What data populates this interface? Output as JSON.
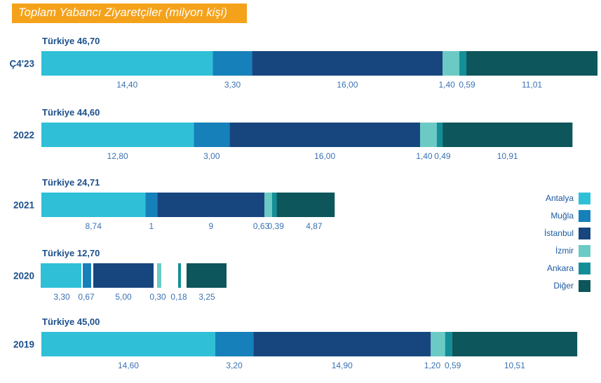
{
  "chart_data": {
    "type": "bar",
    "orientation": "horizontal",
    "stacked": true,
    "title": "Toplam Yabancı Ziyaretçiler (milyon kişi)",
    "xlabel": "",
    "ylabel": "",
    "categories": [
      "Ç4'23",
      "2022",
      "2021",
      "2020",
      "2019"
    ],
    "totals": [
      {
        "label": "Türkiye 46,70",
        "value": 46.7
      },
      {
        "label": "Türkiye 44,60",
        "value": 44.6
      },
      {
        "label": "Türkiye 24,71",
        "value": 24.71
      },
      {
        "label": "Türkiye 12,70",
        "value": 12.7
      },
      {
        "label": "Türkiye 45,00",
        "value": 45.0
      }
    ],
    "series": [
      {
        "name": "Antalya",
        "color": "#2fc0d8",
        "values": [
          14.4,
          12.8,
          8.74,
          3.3,
          14.6
        ],
        "labels": [
          "14,40",
          "12,80",
          "8,74",
          "3,30",
          "14,60"
        ]
      },
      {
        "name": "Muğla",
        "color": "#1680ba",
        "values": [
          3.3,
          3.0,
          1,
          0.67,
          3.2
        ],
        "labels": [
          "3,30",
          "3,00",
          "1",
          "0,67",
          "3,20"
        ]
      },
      {
        "name": "İstanbul",
        "color": "#17467f",
        "values": [
          16.0,
          16.0,
          9,
          5.0,
          14.9
        ],
        "labels": [
          "16,00",
          "16,00",
          "9",
          "5,00",
          "14,90"
        ]
      },
      {
        "name": "İzmir",
        "color": "#6ccac4",
        "values": [
          1.4,
          1.4,
          0.63,
          0.3,
          1.2
        ],
        "labels": [
          "1,40",
          "1,40",
          "0,63",
          "0,30",
          "1,20"
        ]
      },
      {
        "name": "Ankara",
        "color": "#148f98",
        "values": [
          0.59,
          0.49,
          0.39,
          0.18,
          0.59
        ],
        "labels": [
          "0,59",
          "0,49",
          "0,39",
          "0,18",
          "0,59"
        ]
      },
      {
        "name": "Diğer",
        "color": "#0d565b",
        "values": [
          11.01,
          10.91,
          4.87,
          3.25,
          10.51
        ],
        "labels": [
          "11,01",
          "10,91",
          "4,87",
          "3,25",
          "10,51"
        ]
      }
    ],
    "legend": {
      "position": "right",
      "entries": [
        "Antalya",
        "Muğla",
        "İstanbul",
        "İzmir",
        "Ankara",
        "Diğer"
      ]
    },
    "grid": false,
    "title_bg_color": "#f5a21b"
  }
}
